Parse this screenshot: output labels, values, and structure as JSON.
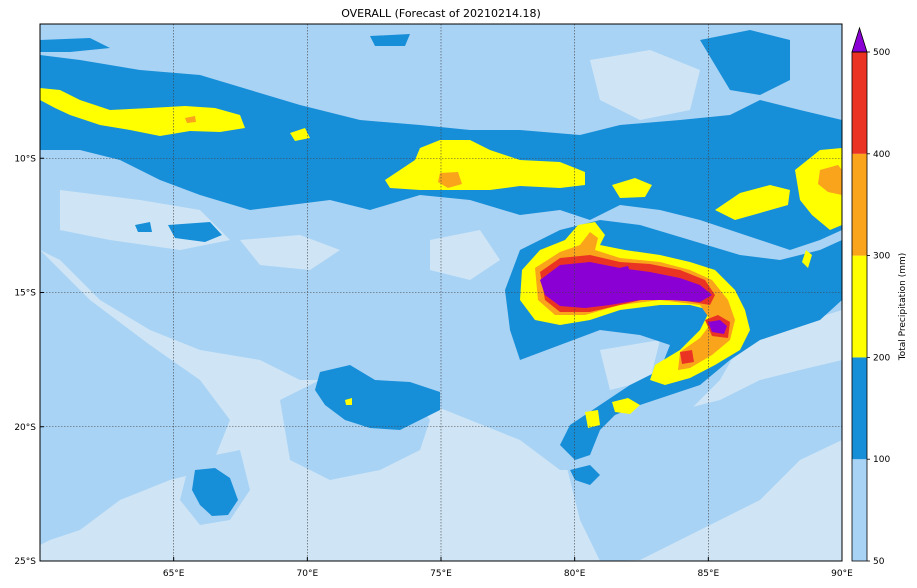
{
  "title": "OVERALL (Forecast of 20210214.18)",
  "map": {
    "lon_range": [
      60,
      90
    ],
    "lat_range": [
      -25,
      -5
    ],
    "lon_ticks": [
      {
        "value": 65,
        "label": "65°E"
      },
      {
        "value": 70,
        "label": "70°E"
      },
      {
        "value": 75,
        "label": "75°E"
      },
      {
        "value": 80,
        "label": "80°E"
      },
      {
        "value": 85,
        "label": "85°E"
      },
      {
        "value": 90,
        "label": "90°E"
      }
    ],
    "lat_ticks": [
      {
        "value": -10,
        "label": "10°S"
      },
      {
        "value": -15,
        "label": "15°S"
      },
      {
        "value": -20,
        "label": "20°S"
      },
      {
        "value": -25,
        "label": "25°S"
      }
    ],
    "grid": "dotted",
    "background_level_color": "#cfe5f5"
  },
  "colorbar": {
    "label": "Total Precipitation (mm)",
    "levels": [
      {
        "value": 50,
        "label": "50",
        "color": "#a9d3f5"
      },
      {
        "value": 100,
        "label": "100",
        "color": "#178ed8"
      },
      {
        "value": 200,
        "label": "200",
        "color": "#ffff00"
      },
      {
        "value": 300,
        "label": "300",
        "color": "#f9a41a"
      },
      {
        "value": 400,
        "label": "400",
        "color": "#eb3324"
      },
      {
        "value": 500,
        "label": "500",
        "color": "#8a00d4"
      }
    ],
    "extend": "max",
    "overflow_color": "#8a00d4"
  }
}
